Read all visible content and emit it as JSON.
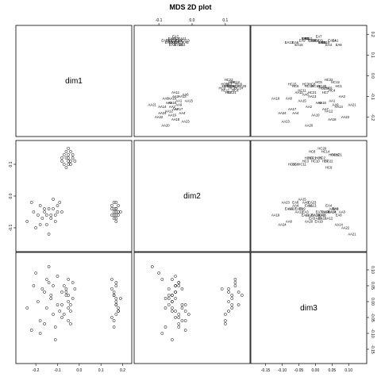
{
  "chart_data": {
    "type": "scatter",
    "title": "MDS 2D plot",
    "variables": [
      "dim1",
      "dim2",
      "dim3"
    ],
    "ranges": {
      "dim1": [
        -0.27,
        0.22
      ],
      "dim2": [
        -0.16,
        0.16
      ],
      "dim3": [
        -0.18,
        0.14
      ]
    },
    "ticks": {
      "dim1": [
        -0.2,
        -0.1,
        0.0,
        0.1,
        0.2
      ],
      "dim2": [
        -0.1,
        0.0,
        0.1,
        0.2
      ],
      "dim3": [
        -0.15,
        -0.1,
        -0.05,
        0.0,
        0.05,
        0.1
      ]
    },
    "tick_labels": {
      "dim1": [
        "-0.2",
        "-0.1",
        "0.0",
        "0.1",
        "0.2"
      ],
      "dim2": [
        "-0.1",
        "0.0",
        "0.1",
        "0.2"
      ],
      "dim3": [
        "-0.15",
        "-0.10",
        "-0.05",
        "0.00",
        "0.05",
        "0.10"
      ]
    },
    "points": [
      {
        "label": "HC1",
        "dim1": -0.05,
        "dim2": 0.13,
        "dim3": 0.07
      },
      {
        "label": "HC2",
        "dim1": -0.06,
        "dim2": 0.12,
        "dim3": 0.02
      },
      {
        "label": "HC3",
        "dim1": -0.04,
        "dim2": 0.11,
        "dim3": -0.03
      },
      {
        "label": "HC4",
        "dim1": -0.07,
        "dim2": 0.13,
        "dim3": 0.05
      },
      {
        "label": "HC5",
        "dim1": -0.03,
        "dim2": 0.12,
        "dim3": 0.01
      },
      {
        "label": "HC6",
        "dim1": -0.05,
        "dim2": 0.1,
        "dim3": -0.06
      },
      {
        "label": "HC7",
        "dim1": -0.08,
        "dim2": 0.11,
        "dim3": 0.03
      },
      {
        "label": "HC8",
        "dim1": -0.04,
        "dim2": 0.14,
        "dim3": -0.01
      },
      {
        "label": "HC9",
        "dim1": -0.06,
        "dim2": 0.09,
        "dim3": 0.04
      },
      {
        "label": "HC10",
        "dim1": -0.05,
        "dim2": 0.11,
        "dim3": 0.0
      },
      {
        "label": "HC11",
        "dim1": -0.07,
        "dim2": 0.1,
        "dim3": -0.04
      },
      {
        "label": "HC12",
        "dim1": -0.03,
        "dim2": 0.13,
        "dim3": 0.06
      },
      {
        "label": "HC13",
        "dim1": -0.05,
        "dim2": 0.12,
        "dim3": -0.02
      },
      {
        "label": "HC14",
        "dim1": -0.06,
        "dim2": 0.14,
        "dim3": 0.03
      },
      {
        "label": "HC15",
        "dim1": -0.04,
        "dim2": 0.1,
        "dim3": -0.07
      },
      {
        "label": "HC20",
        "dim1": -0.05,
        "dim2": 0.15,
        "dim3": 0.02
      },
      {
        "label": "HC21",
        "dim1": -0.08,
        "dim2": 0.12,
        "dim3": -0.01
      },
      {
        "label": "HC22",
        "dim1": -0.02,
        "dim2": 0.11,
        "dim3": 0.04
      },
      {
        "label": "EA1",
        "dim1": 0.17,
        "dim2": -0.04,
        "dim3": 0.06
      },
      {
        "label": "EA2",
        "dim1": 0.16,
        "dim2": -0.06,
        "dim3": 0.02
      },
      {
        "label": "EA3",
        "dim1": 0.18,
        "dim2": -0.05,
        "dim3": -0.03
      },
      {
        "label": "EA4",
        "dim1": 0.15,
        "dim2": -0.03,
        "dim3": 0.04
      },
      {
        "label": "EA5",
        "dim1": 0.17,
        "dim2": -0.07,
        "dim3": -0.01
      },
      {
        "label": "EA6",
        "dim1": 0.16,
        "dim2": -0.02,
        "dim3": -0.06
      },
      {
        "label": "EA7",
        "dim1": 0.19,
        "dim2": -0.05,
        "dim3": 0.01
      },
      {
        "label": "EA8",
        "dim1": 0.15,
        "dim2": -0.06,
        "dim3": 0.07
      },
      {
        "label": "EA9",
        "dim1": 0.17,
        "dim2": -0.04,
        "dim3": -0.04
      },
      {
        "label": "EA10",
        "dim1": 0.16,
        "dim2": -0.05,
        "dim3": 0.03
      },
      {
        "label": "EA11",
        "dim1": 0.18,
        "dim2": -0.03,
        "dim3": -0.02
      },
      {
        "label": "EA12",
        "dim1": 0.17,
        "dim2": -0.06,
        "dim3": 0.0
      },
      {
        "label": "EA13",
        "dim1": 0.16,
        "dim2": -0.04,
        "dim3": -0.08
      },
      {
        "label": "EA14",
        "dim1": 0.17,
        "dim2": -0.05,
        "dim3": 0.05
      },
      {
        "label": "EA15",
        "dim1": 0.15,
        "dim2": -0.04,
        "dim3": -0.05
      },
      {
        "label": "EA19",
        "dim1": 0.17,
        "dim2": -0.08,
        "dim3": 0.01
      },
      {
        "label": "EA21",
        "dim1": 0.18,
        "dim2": -0.06,
        "dim3": -0.03
      },
      {
        "label": "EA22",
        "dim1": 0.16,
        "dim2": -0.07,
        "dim3": 0.02
      },
      {
        "label": "EA23",
        "dim1": 0.17,
        "dim2": -0.02,
        "dim3": -0.01
      },
      {
        "label": "AA1",
        "dim1": -0.12,
        "dim2": -0.04,
        "dim3": 0.05
      },
      {
        "label": "AA2",
        "dim1": -0.15,
        "dim2": -0.06,
        "dim3": -0.02
      },
      {
        "label": "AA3",
        "dim1": -0.1,
        "dim2": -0.05,
        "dim3": 0.08
      },
      {
        "label": "AA4",
        "dim1": -0.18,
        "dim2": -0.03,
        "dim3": -0.06
      },
      {
        "label": "AA5",
        "dim1": -0.13,
        "dim2": -0.07,
        "dim3": 0.01
      },
      {
        "label": "AA6",
        "dim1": -0.09,
        "dim2": -0.02,
        "dim3": -0.03
      },
      {
        "label": "AA7",
        "dim1": -0.16,
        "dim2": -0.05,
        "dim3": 0.03
      },
      {
        "label": "AA8",
        "dim1": -0.11,
        "dim2": -0.08,
        "dim3": -0.08
      },
      {
        "label": "AA9",
        "dim1": -0.14,
        "dim2": -0.04,
        "dim3": 0.06
      },
      {
        "label": "AA10",
        "dim1": -0.19,
        "dim2": -0.06,
        "dim3": 0.0
      },
      {
        "label": "AA11",
        "dim1": -0.08,
        "dim2": -0.05,
        "dim3": -0.05
      },
      {
        "label": "AA12",
        "dim1": -0.17,
        "dim2": -0.07,
        "dim3": 0.04
      },
      {
        "label": "AA13",
        "dim1": -0.1,
        "dim2": -0.03,
        "dim3": -0.01
      },
      {
        "label": "AA14",
        "dim1": -0.15,
        "dim2": -0.09,
        "dim3": 0.07
      },
      {
        "label": "AA15",
        "dim1": -0.12,
        "dim2": -0.01,
        "dim3": -0.04
      },
      {
        "label": "AA16",
        "dim1": -0.13,
        "dim2": -0.06,
        "dim3": 0.02
      },
      {
        "label": "AA17",
        "dim1": -0.16,
        "dim2": -0.04,
        "dim3": -0.07
      },
      {
        "label": "AA18",
        "dim1": -0.21,
        "dim2": -0.05,
        "dim3": 0.05
      },
      {
        "label": "AA20",
        "dim1": -0.24,
        "dim2": -0.08,
        "dim3": -0.02
      },
      {
        "label": "AA22",
        "dim1": -0.2,
        "dim2": -0.1,
        "dim3": 0.09
      },
      {
        "label": "AA23",
        "dim1": -0.22,
        "dim2": -0.02,
        "dim3": -0.09
      },
      {
        "label": "AA19",
        "dim1": -0.11,
        "dim2": -0.06,
        "dim3": -0.12
      },
      {
        "label": "AA21",
        "dim1": -0.14,
        "dim2": -0.12,
        "dim3": 0.11
      },
      {
        "label": "AA24",
        "dim1": -0.18,
        "dim2": -0.09,
        "dim3": -0.1
      }
    ]
  }
}
